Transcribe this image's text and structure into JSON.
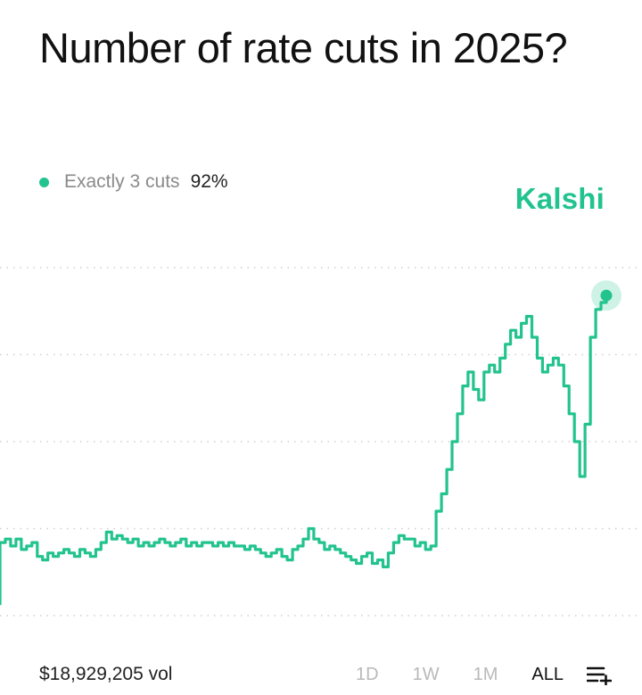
{
  "header": {
    "title": "Number of rate cuts in 2025?"
  },
  "legend": {
    "label": "Exactly 3 cuts",
    "value": "92%",
    "color": "#22c38e"
  },
  "brand": {
    "name": "Kalshi",
    "color": "#22c38e"
  },
  "footer": {
    "volume": "$18,929,205 vol",
    "ranges": [
      "1D",
      "1W",
      "1M",
      "ALL"
    ],
    "active_range": "ALL",
    "menu_icon": "list-add-icon"
  },
  "chart_data": {
    "type": "line",
    "series": [
      {
        "name": "Exactly 3 cuts",
        "color": "#22c38e",
        "y": [
          21,
          22,
          20,
          22,
          19,
          20,
          21,
          17,
          16,
          18,
          17,
          18,
          19,
          18,
          17,
          19,
          18,
          17,
          19,
          21,
          24,
          22,
          23,
          22,
          21,
          22,
          20,
          21,
          20,
          21,
          22,
          21,
          20,
          21,
          22,
          20,
          21,
          20,
          21,
          21,
          20,
          21,
          20,
          21,
          20,
          20,
          19,
          20,
          19,
          18,
          17,
          18,
          19,
          17,
          16,
          19,
          20,
          22,
          25,
          22,
          21,
          19,
          20,
          19,
          18,
          17,
          16,
          15,
          17,
          18,
          15,
          16,
          14,
          18,
          21,
          23,
          22,
          22,
          20,
          21,
          19,
          20,
          30,
          35,
          42,
          50,
          58,
          66,
          70,
          65,
          62,
          70,
          72,
          70,
          74,
          78,
          82,
          80,
          84,
          86,
          80,
          74,
          70,
          72,
          74,
          72,
          66,
          58,
          50,
          40,
          55,
          80,
          88,
          90,
          92
        ],
        "highlight_last": true
      }
    ],
    "ylim": [
      0,
      100
    ],
    "grid": true,
    "gridline_count": 5,
    "legend_position": "top-left"
  }
}
